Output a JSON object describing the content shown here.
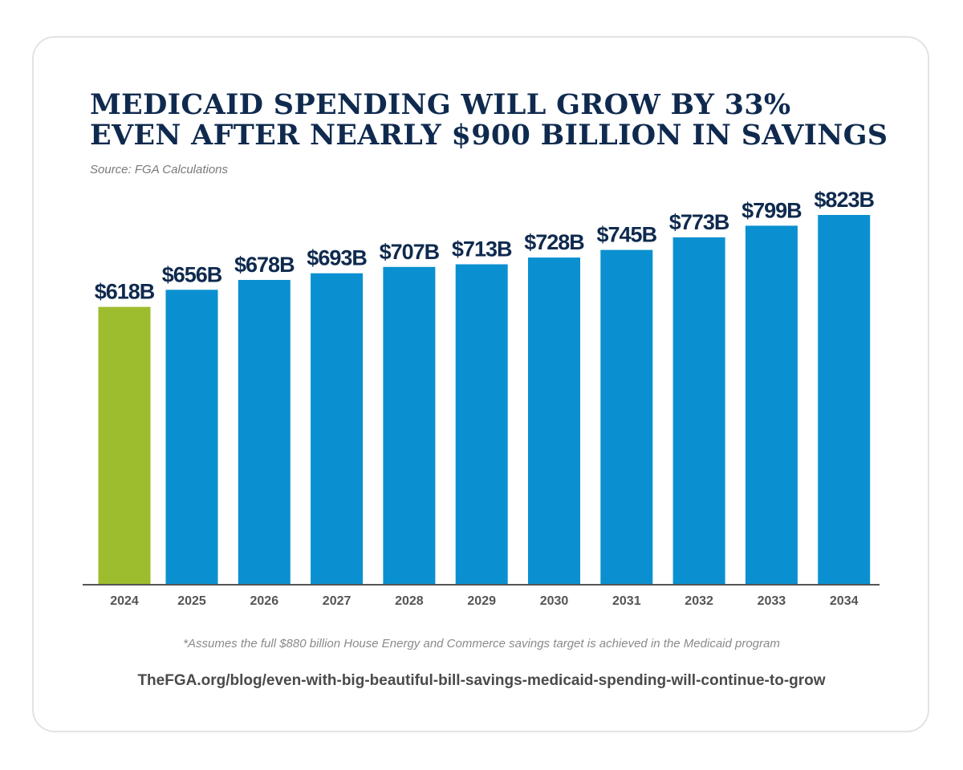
{
  "title_lines": [
    "MEDICAID SPENDING WILL GROW BY 33%",
    "EVEN AFTER NEARLY $900 BILLION IN SAVINGS"
  ],
  "source": "Source: FGA Calculations",
  "footnote": "*Assumes the full $880 billion House Energy and Commerce savings target is achieved in the Medicaid program",
  "url": "TheFGA.org/blog/even-with-big-beautiful-bill-savings-medicaid-spending-will-continue-to-grow",
  "colors": {
    "highlight_bar": "#9dbd2e",
    "bar": "#0a90d0",
    "title": "#0f2a4e",
    "axis": "#555555"
  },
  "chart_data": {
    "type": "bar",
    "categories": [
      "2024",
      "2025",
      "2026",
      "2027",
      "2028",
      "2029",
      "2030",
      "2031",
      "2032",
      "2033",
      "2034"
    ],
    "values": [
      618,
      656,
      678,
      693,
      707,
      713,
      728,
      745,
      773,
      799,
      823
    ],
    "data_labels": [
      "$618B",
      "$656B",
      "$678B",
      "$693B",
      "$707B",
      "$713B",
      "$728B",
      "$745B",
      "$773B",
      "$799B",
      "$823B"
    ],
    "highlight_index": 0,
    "ylim": [
      0,
      823
    ],
    "grid": false,
    "legend": "none"
  }
}
